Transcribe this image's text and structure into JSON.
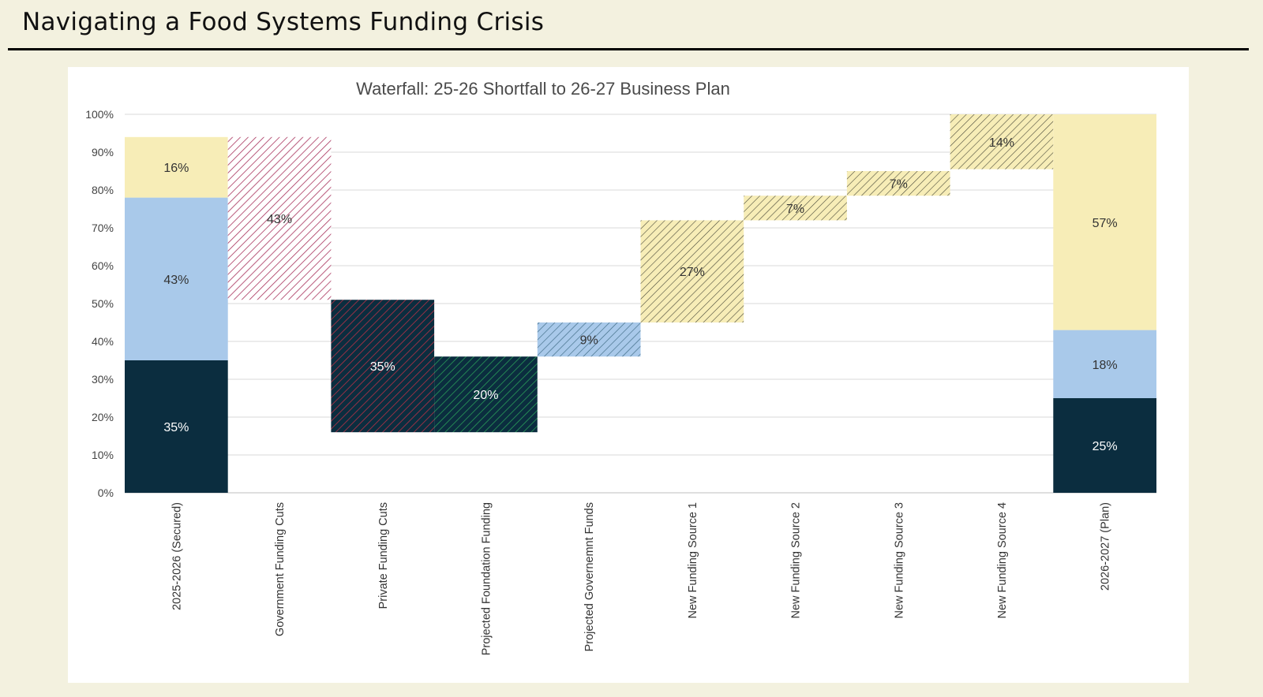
{
  "page": {
    "title": "Navigating a Food Systems Funding Crisis"
  },
  "chart_data": {
    "type": "bar",
    "subtype": "waterfall",
    "title": "Waterfall: 25-26 Shortfall to 26-27 Business Plan",
    "xlabel": "",
    "ylabel": "",
    "ylim": [
      0,
      100
    ],
    "yticks": [
      "0%",
      "10%",
      "20%",
      "30%",
      "40%",
      "50%",
      "60%",
      "70%",
      "80%",
      "90%",
      "100%"
    ],
    "grid": true,
    "legend": "none",
    "colors": {
      "dark": "#0b2d3f",
      "blue": "#a9c9ea",
      "yellow": "#f7edb7",
      "gov_cut_stripe": "#a8325c",
      "private_cut_stripe": "#b83246",
      "foundation_stripe": "#2a9c58",
      "gov_funds_stripe": "#3d6a84",
      "new_source_stripe": "#4a4a3a"
    },
    "categories": [
      "2025-2026 (Secured)",
      "Government Funding Cuts",
      "Private Funding Cuts",
      "Projected Foundation Funding",
      "Projected Governemnt Funds",
      "New Funding Source 1",
      "New Funding Source 2",
      "New Funding Source 3",
      "New Funding Source 4",
      "2026-2027 (Plan)"
    ],
    "segments": [
      {
        "category": "2025-2026 (Secured)",
        "start": 0,
        "end": 35,
        "label": "35%",
        "style": "dark"
      },
      {
        "category": "2025-2026 (Secured)",
        "start": 35,
        "end": 78,
        "label": "43%",
        "style": "blue"
      },
      {
        "category": "2025-2026 (Secured)",
        "start": 78,
        "end": 94,
        "label": "16%",
        "style": "yellow"
      },
      {
        "category": "Government Funding Cuts",
        "start": 51,
        "end": 94,
        "label": "43%",
        "style": "gov_cut"
      },
      {
        "category": "Private Funding Cuts",
        "start": 16,
        "end": 51,
        "label": "35%",
        "style": "private_cut"
      },
      {
        "category": "Projected Foundation Funding",
        "start": 16,
        "end": 36,
        "label": "20%",
        "style": "foundation"
      },
      {
        "category": "Projected Governemnt Funds",
        "start": 36,
        "end": 45,
        "label": "9%",
        "style": "gov_funds"
      },
      {
        "category": "New Funding Source 1",
        "start": 45,
        "end": 72,
        "label": "27%",
        "style": "new_source"
      },
      {
        "category": "New Funding Source 2",
        "start": 72,
        "end": 78.5,
        "label": "7%",
        "style": "new_source"
      },
      {
        "category": "New Funding Source 3",
        "start": 78.5,
        "end": 85,
        "label": "7%",
        "style": "new_source"
      },
      {
        "category": "New Funding Source 4",
        "start": 85.5,
        "end": 100,
        "label": "14%",
        "style": "new_source"
      },
      {
        "category": "2026-2027 (Plan)",
        "start": 0,
        "end": 25,
        "label": "25%",
        "style": "dark"
      },
      {
        "category": "2026-2027 (Plan)",
        "start": 25,
        "end": 43,
        "label": "18%",
        "style": "blue"
      },
      {
        "category": "2026-2027 (Plan)",
        "start": 43,
        "end": 100,
        "label": "57%",
        "style": "yellow"
      }
    ]
  }
}
